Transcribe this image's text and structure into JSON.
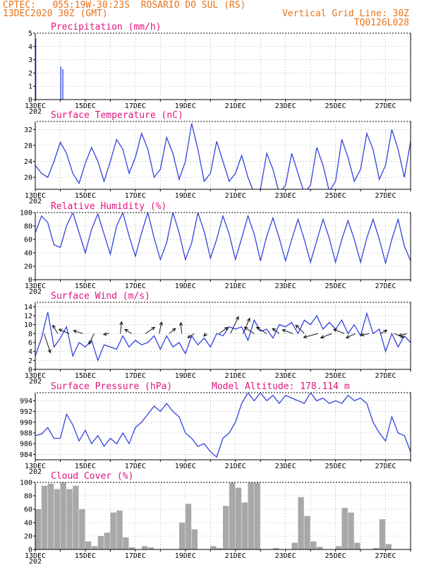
{
  "header": {
    "line1_left": "CPTEC:   055:19W-30:23S  ROSARIO DO SUL (RS)",
    "line2_left": "13DEC2020 30Z (GMT)",
    "line2_right": "Vertical Grid Line: 30Z",
    "line3_right": "TQ0126L028"
  },
  "colors": {
    "header": "#e8731a",
    "title": "#e0157c",
    "line": "#3344dd",
    "cloud": "#a8a8a8",
    "grid": "#888888"
  },
  "x_labels": [
    "13DEC",
    "15DEC",
    "17DEC",
    "19DEC",
    "21DEC",
    "23DEC",
    "25DEC",
    "27DEC"
  ],
  "x_sub_label": "202",
  "chart_data": [
    {
      "id": "precip",
      "type": "bar",
      "title": "Precipitation (mm/h)",
      "ylim": [
        0,
        5
      ],
      "yticks": [
        0,
        1,
        2,
        3,
        4,
        5
      ],
      "x_unit": "days since 13DEC",
      "xlim": [
        0,
        15
      ],
      "points": [
        [
          0.02,
          4.6
        ],
        [
          1.02,
          2.5
        ],
        [
          1.1,
          2.3
        ]
      ]
    },
    {
      "id": "temp",
      "type": "line",
      "title": "Surface Temperature (nC)",
      "ylim": [
        17,
        34
      ],
      "yticks": [
        20,
        24,
        28,
        32
      ],
      "xlim": [
        0,
        15
      ],
      "x": [
        0,
        0.25,
        0.5,
        0.75,
        1,
        1.25,
        1.5,
        1.75,
        2,
        2.25,
        2.5,
        2.75,
        3,
        3.25,
        3.5,
        3.75,
        4,
        4.25,
        4.5,
        4.75,
        5,
        5.25,
        5.5,
        5.75,
        6,
        6.25,
        6.5,
        6.75,
        7,
        7.25,
        7.5,
        7.75,
        8,
        8.25,
        8.5,
        8.75,
        9,
        9.25,
        9.5,
        9.75,
        10,
        10.25,
        10.5,
        10.75,
        11,
        11.25,
        11.5,
        11.75,
        12,
        12.25,
        12.5,
        12.75,
        13,
        13.25,
        13.5,
        13.75,
        14,
        14.25,
        14.5,
        14.75,
        15
      ],
      "y": [
        23,
        21,
        20,
        24,
        28.8,
        26,
        21,
        18.5,
        23.5,
        27.5,
        24,
        19,
        24,
        29.5,
        27,
        21,
        25,
        31,
        27,
        20,
        22,
        30,
        26,
        19.5,
        24,
        33.5,
        27,
        19,
        21,
        29,
        24,
        19,
        21,
        25.5,
        20,
        16,
        17,
        26,
        22,
        16,
        18,
        26,
        21,
        16,
        18,
        27.5,
        23,
        16.5,
        19,
        29.5,
        25,
        19,
        22,
        31,
        27,
        19.5,
        23,
        32,
        27,
        20,
        29
      ]
    },
    {
      "id": "rh",
      "type": "line",
      "title": "Relative Humidity (%)",
      "ylim": [
        0,
        100
      ],
      "yticks": [
        0,
        20,
        40,
        60,
        80,
        100
      ],
      "xlim": [
        0,
        15
      ],
      "x": [
        0,
        0.25,
        0.5,
        0.75,
        1,
        1.25,
        1.5,
        1.75,
        2,
        2.25,
        2.5,
        2.75,
        3,
        3.25,
        3.5,
        3.75,
        4,
        4.25,
        4.5,
        4.75,
        5,
        5.25,
        5.5,
        5.75,
        6,
        6.25,
        6.5,
        6.75,
        7,
        7.25,
        7.5,
        7.75,
        8,
        8.25,
        8.5,
        8.75,
        9,
        9.25,
        9.5,
        9.75,
        10,
        10.25,
        10.5,
        10.75,
        11,
        11.25,
        11.5,
        11.75,
        12,
        12.25,
        12.5,
        12.75,
        13,
        13.25,
        13.5,
        13.75,
        14,
        14.25,
        14.5,
        14.75,
        15
      ],
      "y": [
        70,
        95,
        85,
        52,
        48,
        80,
        100,
        70,
        40,
        75,
        98,
        68,
        38,
        80,
        100,
        65,
        35,
        70,
        100,
        62,
        30,
        55,
        100,
        70,
        30,
        55,
        100,
        72,
        32,
        60,
        95,
        68,
        30,
        62,
        95,
        68,
        28,
        65,
        92,
        62,
        28,
        60,
        90,
        60,
        26,
        58,
        90,
        62,
        26,
        60,
        88,
        60,
        26,
        62,
        90,
        60,
        25,
        60,
        90,
        50,
        28
      ]
    },
    {
      "id": "wind",
      "type": "line",
      "title": "Surface Wind (m/s)",
      "ylim": [
        0,
        15
      ],
      "yticks": [
        0,
        2,
        4,
        6,
        8,
        10,
        12,
        14
      ],
      "xlim": [
        0,
        15
      ],
      "x": [
        0,
        0.25,
        0.5,
        0.75,
        1,
        1.25,
        1.5,
        1.75,
        2,
        2.25,
        2.5,
        2.75,
        3,
        3.25,
        3.5,
        3.75,
        4,
        4.25,
        4.5,
        4.75,
        5,
        5.25,
        5.5,
        5.75,
        6,
        6.25,
        6.5,
        6.75,
        7,
        7.25,
        7.5,
        7.75,
        8,
        8.25,
        8.5,
        8.75,
        9,
        9.25,
        9.5,
        9.75,
        10,
        10.25,
        10.5,
        10.75,
        11,
        11.25,
        11.5,
        11.75,
        12,
        12.25,
        12.5,
        12.75,
        13,
        13.25,
        13.5,
        13.75,
        14,
        14.25,
        14.5,
        14.75,
        15
      ],
      "y": [
        3,
        7,
        12.8,
        5,
        7,
        9.5,
        3,
        6,
        5,
        6.5,
        2,
        5.5,
        5,
        4.5,
        7.5,
        5,
        6.5,
        5.5,
        6,
        7.5,
        4.5,
        7.5,
        5,
        6,
        3.5,
        7.5,
        5.5,
        7,
        5,
        8,
        7.5,
        9.5,
        9,
        9.5,
        6.5,
        11,
        8.5,
        9,
        7,
        10,
        9.5,
        10.5,
        8,
        11,
        10,
        12,
        9,
        10.5,
        9,
        11,
        8,
        10,
        7.5,
        12.5,
        8,
        9,
        4,
        8,
        5,
        7.5,
        6
      ],
      "arrow_x": [
        0.35,
        0.9,
        1.35,
        1.9,
        2.35,
        2.95,
        3.4,
        3.85,
        4.4,
        4.95,
        5.35,
        5.85,
        6.35,
        6.85,
        7.35,
        7.8,
        8.3,
        8.75,
        9.25,
        9.75,
        10.3,
        10.75,
        11.3,
        11.85,
        12.35,
        12.8,
        13.35,
        13.8,
        14.35,
        14.85
      ],
      "arrow_u": [
        1.5,
        -1.2,
        -2.4,
        -2.2,
        -1.2,
        -1.3,
        0.3,
        -1.6,
        2.2,
        0.6,
        1.5,
        -0.2,
        -1.5,
        -0.7,
        2.0,
        1.9,
        1.6,
        -2.3,
        -2.4,
        -1.6,
        -2.5,
        -2.0,
        -3.4,
        -2.6,
        -2.5,
        -2.2,
        -2.0,
        1.5,
        2.2,
        -1.9
      ],
      "arrow_v": [
        -4.5,
        2.0,
        1.0,
        0.7,
        -2.5,
        -0.2,
        2.8,
        1.0,
        1.5,
        2.7,
        1.2,
        2.6,
        -1.0,
        -0.6,
        1.5,
        4.0,
        3.6,
        1.5,
        1.5,
        1.2,
        0.9,
        2.0,
        -0.9,
        -1.0,
        1.0,
        -1.0,
        -0.4,
        0.8,
        -0.9,
        -0.5
      ]
    },
    {
      "id": "press",
      "type": "line",
      "title": "Surface Pressure (hPa)",
      "ylim": [
        983,
        995.5
      ],
      "yticks": [
        984,
        986,
        988,
        990,
        992,
        994
      ],
      "xlim": [
        0,
        15
      ],
      "x": [
        0,
        0.25,
        0.5,
        0.75,
        1,
        1.25,
        1.5,
        1.75,
        2,
        2.25,
        2.5,
        2.75,
        3,
        3.25,
        3.5,
        3.75,
        4,
        4.25,
        4.5,
        4.75,
        5,
        5.25,
        5.5,
        5.75,
        6,
        6.25,
        6.5,
        6.75,
        7,
        7.25,
        7.5,
        7.75,
        8,
        8.25,
        8.5,
        8.75,
        9,
        9.25,
        9.5,
        9.75,
        10,
        10.25,
        10.5,
        10.75,
        11,
        11.25,
        11.5,
        11.75,
        12,
        12.25,
        12.5,
        12.75,
        13,
        13.25,
        13.5,
        13.75,
        14,
        14.25,
        14.5,
        14.75,
        15
      ],
      "y": [
        987.5,
        987.8,
        989,
        987,
        987,
        991.5,
        989.5,
        986.5,
        988.5,
        986,
        987.5,
        985.5,
        987,
        986,
        988,
        986,
        989,
        990,
        991.5,
        993,
        992,
        993.5,
        992,
        991,
        988,
        987,
        985.5,
        986,
        984.5,
        983.5,
        987,
        988,
        990,
        993.5,
        995.5,
        994,
        995.5,
        994,
        995,
        993.5,
        995,
        994.5,
        994,
        993.5,
        995.5,
        994,
        994.5,
        993.5,
        994,
        993.5,
        995,
        994,
        994.5,
        993.5,
        990,
        988,
        986.5,
        991,
        988,
        987.5,
        984.5
      ]
    },
    {
      "id": "cloud",
      "type": "bar",
      "title": "Cloud Cover (%)",
      "ylim": [
        0,
        100
      ],
      "yticks": [
        0,
        20,
        40,
        60,
        80,
        100
      ],
      "xlim": [
        0,
        15
      ],
      "x": [
        0,
        0.25,
        0.5,
        0.75,
        1,
        1.25,
        1.5,
        1.75,
        2,
        2.25,
        2.5,
        2.75,
        3,
        3.25,
        3.5,
        3.75,
        4,
        4.25,
        4.5,
        4.75,
        5,
        5.25,
        5.5,
        5.75,
        6,
        6.25,
        6.5,
        6.75,
        7,
        7.25,
        7.5,
        7.75,
        8,
        8.25,
        8.5,
        8.75,
        9,
        9.25,
        9.5,
        9.75,
        10,
        10.25,
        10.5,
        10.75,
        11,
        11.25,
        11.5,
        11.75,
        12,
        12.25,
        12.5,
        12.75,
        13,
        13.25,
        13.5,
        13.75,
        14,
        14.25,
        14.5,
        14.75,
        15
      ],
      "y": [
        60,
        95,
        98,
        90,
        100,
        90,
        95,
        60,
        12,
        5,
        20,
        25,
        55,
        58,
        18,
        3,
        0,
        5,
        3,
        0,
        0,
        0,
        0,
        40,
        68,
        30,
        0,
        0,
        5,
        2,
        65,
        100,
        92,
        70,
        100,
        100,
        0,
        0,
        2,
        0,
        0,
        10,
        78,
        50,
        12,
        4,
        0,
        0,
        5,
        62,
        55,
        10,
        0,
        0,
        2,
        45,
        8,
        0,
        0,
        0,
        3
      ]
    }
  ],
  "altitude_label": "Model Altitude: 178.114 m"
}
